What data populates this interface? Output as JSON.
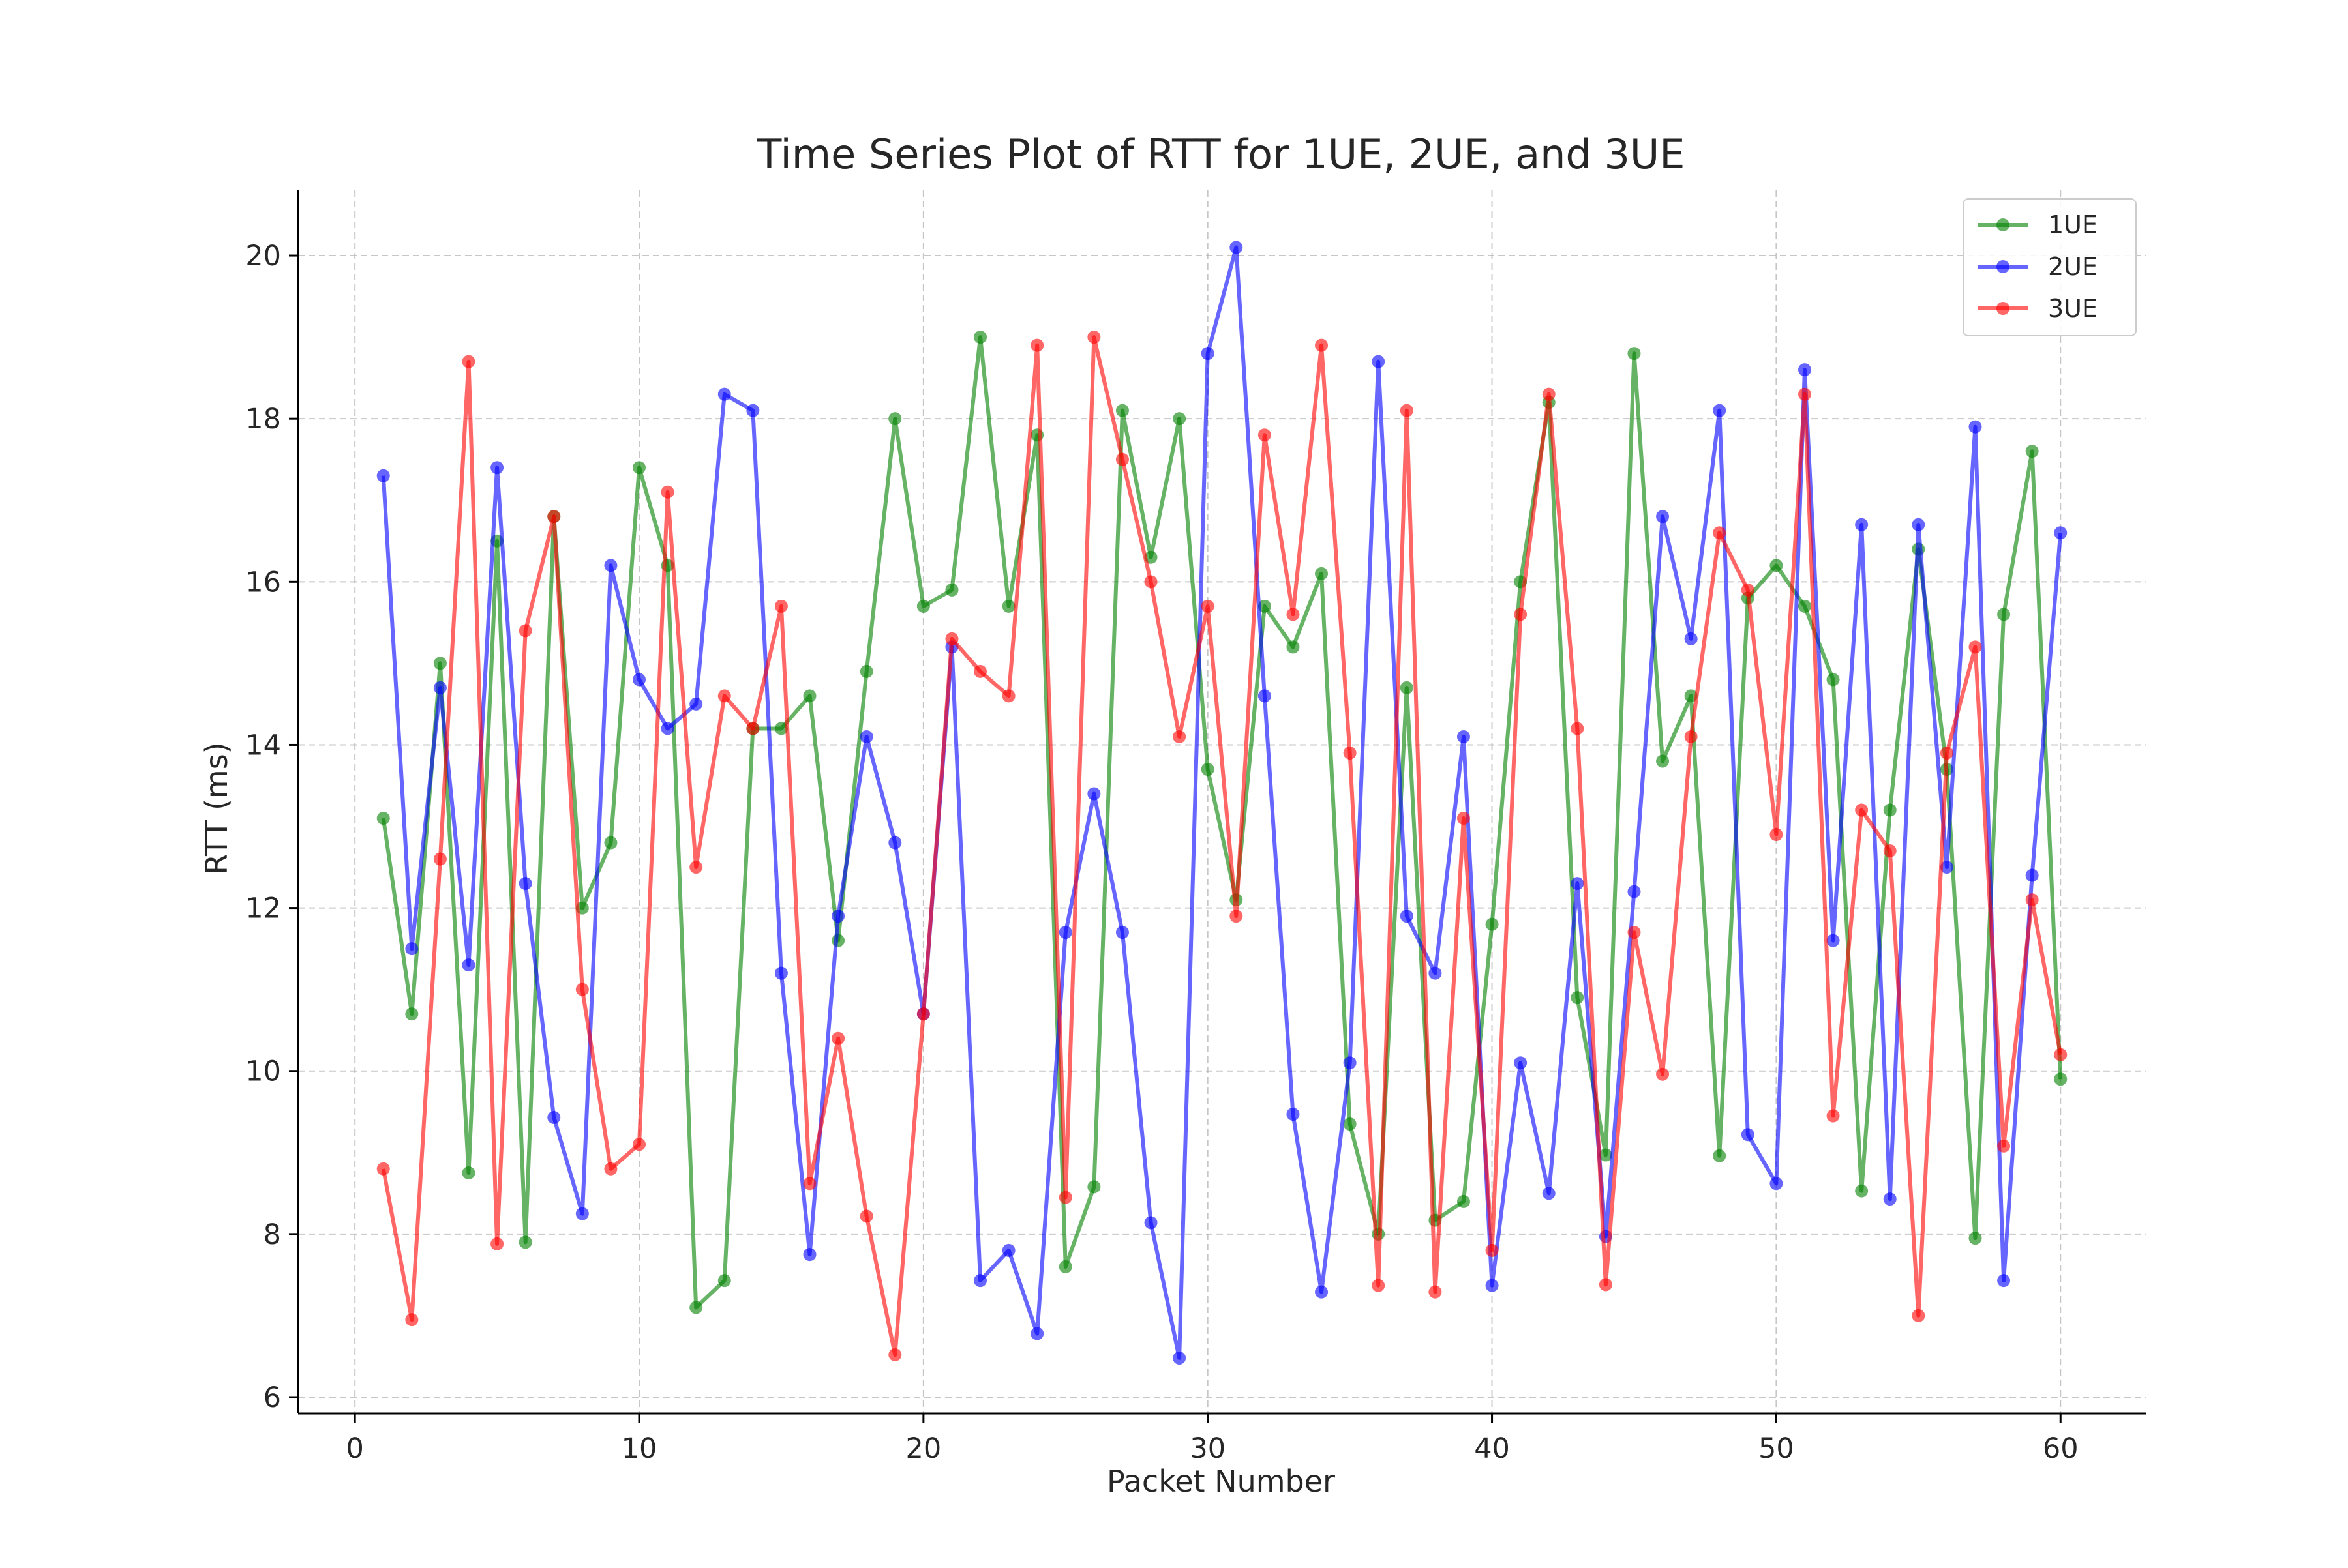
{
  "chart_data": {
    "type": "line",
    "title": "Time Series Plot of RTT for 1UE, 2UE, and 3UE",
    "xlabel": "Packet Number",
    "ylabel": "RTT (ms)",
    "xlim": [
      -2,
      63
    ],
    "ylim": [
      5.8,
      20.8
    ],
    "xticks": [
      0,
      10,
      20,
      30,
      40,
      50,
      60
    ],
    "yticks": [
      6,
      8,
      10,
      12,
      14,
      16,
      18,
      20
    ],
    "xtick_labels": [
      "0",
      "10",
      "20",
      "30",
      "40",
      "50",
      "60"
    ],
    "ytick_labels": [
      "6",
      "8",
      "10",
      "12",
      "14",
      "16",
      "18",
      "20"
    ],
    "grid": true,
    "legend_position": "top-right",
    "x": [
      1,
      2,
      3,
      4,
      5,
      6,
      7,
      8,
      9,
      10,
      11,
      12,
      13,
      14,
      15,
      16,
      17,
      18,
      19,
      20,
      21,
      22,
      23,
      24,
      25,
      26,
      27,
      28,
      29,
      30,
      31,
      32,
      33,
      34,
      35,
      36,
      37,
      38,
      39,
      40,
      41,
      42,
      43,
      44,
      45,
      46,
      47,
      48,
      49,
      50,
      51,
      52,
      53,
      54,
      55,
      56,
      57,
      58,
      59,
      60
    ],
    "series": [
      {
        "name": "1UE",
        "color": "#008000",
        "values": [
          13.1,
          10.7,
          15.0,
          8.75,
          16.5,
          7.9,
          16.8,
          12.0,
          12.8,
          17.4,
          16.2,
          7.1,
          7.43,
          14.2,
          14.2,
          14.6,
          11.6,
          14.9,
          18.0,
          15.7,
          15.9,
          19.0,
          15.7,
          17.8,
          7.6,
          8.58,
          18.1,
          16.3,
          18.0,
          13.7,
          12.1,
          15.7,
          15.2,
          16.1,
          9.35,
          8.0,
          14.7,
          8.17,
          8.4,
          11.8,
          16.0,
          18.2,
          10.9,
          8.97,
          18.8,
          13.8,
          14.6,
          8.96,
          15.8,
          16.2,
          15.7,
          14.8,
          8.53,
          13.2,
          16.4,
          13.7,
          7.95,
          15.6,
          17.6,
          9.9
        ]
      },
      {
        "name": "2UE",
        "color": "#0000ff",
        "values": [
          17.3,
          11.5,
          14.7,
          11.3,
          17.4,
          12.3,
          9.43,
          8.25,
          16.2,
          14.8,
          14.2,
          14.5,
          18.3,
          18.1,
          11.2,
          7.75,
          11.9,
          14.1,
          12.8,
          10.7,
          15.2,
          7.43,
          7.8,
          6.78,
          11.7,
          13.4,
          11.7,
          8.14,
          6.48,
          18.8,
          20.1,
          14.6,
          9.47,
          7.29,
          10.1,
          18.7,
          11.9,
          11.2,
          14.1,
          7.37,
          10.1,
          8.5,
          12.3,
          7.97,
          12.2,
          16.8,
          15.3,
          18.1,
          9.22,
          8.62,
          18.6,
          11.6,
          16.7,
          8.43,
          16.7,
          12.5,
          17.9,
          7.43,
          12.4,
          16.6
        ]
      },
      {
        "name": "3UE",
        "color": "#ff0000",
        "values": [
          8.8,
          6.95,
          12.6,
          18.7,
          7.88,
          15.4,
          16.8,
          11.0,
          8.8,
          9.1,
          17.1,
          12.5,
          14.6,
          14.2,
          15.7,
          8.62,
          10.4,
          8.22,
          6.52,
          10.7,
          15.3,
          14.9,
          14.6,
          18.9,
          8.45,
          19.0,
          17.5,
          16.0,
          14.1,
          15.7,
          11.9,
          17.8,
          15.6,
          18.9,
          13.9,
          7.37,
          18.1,
          7.29,
          13.1,
          7.8,
          15.6,
          18.3,
          14.2,
          7.38,
          11.7,
          9.96,
          14.1,
          16.6,
          15.9,
          12.9,
          18.3,
          9.45,
          13.2,
          12.7,
          7.0,
          13.9,
          15.2,
          9.08,
          12.1,
          10.2
        ]
      }
    ]
  }
}
